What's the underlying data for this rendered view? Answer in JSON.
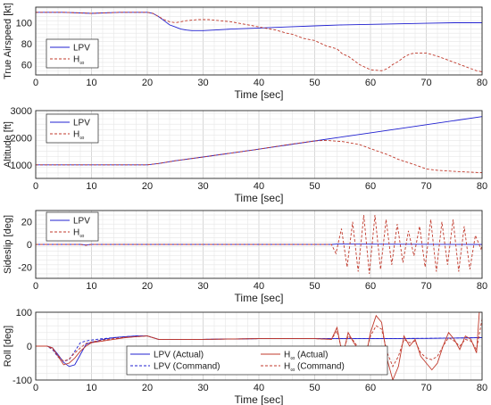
{
  "colors": {
    "lpv": "#2020d0",
    "hinf": "#c0392b",
    "axis": "#262626"
  },
  "chart_data": [
    {
      "type": "line",
      "ylabel": "True Airspeed [kt]",
      "xlabel": "Time [sec]",
      "xlim": [
        0,
        80
      ],
      "ylim": [
        50,
        115
      ],
      "xticks": [
        "0",
        "10",
        "20",
        "30",
        "40",
        "50",
        "60",
        "70",
        "80"
      ],
      "yticks": [
        "60",
        "80",
        "100"
      ],
      "grid": true,
      "legend_position": "left",
      "legend": [
        {
          "label": "LPV",
          "series": "lpv"
        },
        {
          "label": "H",
          "sub": "∞",
          "series": "hinf"
        }
      ],
      "series": [
        {
          "name": "LPV",
          "style": "solid",
          "color": "lpv",
          "x": [
            0,
            5,
            10,
            15,
            20,
            21,
            22,
            23,
            24,
            25,
            26,
            27,
            28,
            30,
            32,
            35,
            40,
            45,
            50,
            55,
            60,
            65,
            70,
            75,
            80
          ],
          "y": [
            110,
            110,
            109,
            110,
            110,
            109,
            106,
            102,
            98,
            96,
            94,
            93,
            92.5,
            92.5,
            93,
            94,
            95,
            96,
            97,
            98,
            98.5,
            99,
            99.5,
            100,
            100
          ]
        },
        {
          "name": "H∞",
          "style": "dashed",
          "color": "hinf",
          "x": [
            0,
            5,
            10,
            15,
            20,
            21,
            22,
            23,
            24,
            25,
            27,
            29,
            31,
            33,
            35,
            37,
            39,
            41,
            43,
            45,
            46,
            47,
            48,
            50,
            52,
            54,
            55,
            56,
            57,
            58,
            60,
            62,
            63,
            64,
            65,
            66,
            67,
            68,
            70,
            72,
            74,
            76,
            77,
            78,
            79,
            80
          ],
          "y": [
            110,
            110,
            109,
            110,
            110,
            109,
            106,
            103,
            101,
            100,
            102,
            103,
            103,
            102,
            101,
            99,
            97,
            95,
            93,
            90,
            89,
            87,
            85,
            83,
            78,
            75,
            70,
            68,
            64,
            60,
            55,
            54,
            56,
            60,
            63,
            67,
            70,
            71,
            71,
            68,
            64,
            60,
            58,
            56,
            54,
            53
          ]
        }
      ]
    },
    {
      "type": "line",
      "ylabel": "Altitude [ft]",
      "xlabel": "Time [sec]",
      "xlim": [
        0,
        80
      ],
      "ylim": [
        500,
        3000
      ],
      "xticks": [
        "0",
        "10",
        "20",
        "30",
        "40",
        "50",
        "60",
        "70",
        "80"
      ],
      "yticks": [
        "1000",
        "2000",
        "3000"
      ],
      "grid": true,
      "legend_position": "left",
      "legend": [
        {
          "label": "LPV",
          "series": "lpv"
        },
        {
          "label": "H",
          "sub": "∞",
          "series": "hinf"
        }
      ],
      "series": [
        {
          "name": "LPV",
          "style": "solid",
          "color": "lpv",
          "x": [
            0,
            5,
            10,
            15,
            20,
            22,
            25,
            30,
            40,
            50,
            60,
            70,
            80
          ],
          "y": [
            1000,
            1000,
            1000,
            1000,
            1000,
            1050,
            1150,
            1290,
            1580,
            1880,
            2180,
            2480,
            2780
          ]
        },
        {
          "name": "H∞",
          "style": "dashed",
          "color": "hinf",
          "x": [
            0,
            5,
            10,
            15,
            20,
            22,
            25,
            30,
            40,
            45,
            50,
            52,
            55,
            58,
            60,
            63,
            65,
            68,
            70,
            72,
            75,
            78,
            80
          ],
          "y": [
            1000,
            1000,
            1000,
            1000,
            1000,
            1050,
            1150,
            1290,
            1580,
            1740,
            1880,
            1900,
            1860,
            1750,
            1600,
            1380,
            1200,
            1000,
            850,
            800,
            760,
            730,
            710
          ]
        }
      ]
    },
    {
      "type": "line",
      "ylabel": "Sideslip [deg]",
      "xlabel": "Time [sec]",
      "xlim": [
        0,
        80
      ],
      "ylim": [
        -30,
        30
      ],
      "xticks": [
        "0",
        "10",
        "20",
        "30",
        "40",
        "50",
        "60",
        "70",
        "80"
      ],
      "yticks": [
        "-20",
        "0",
        "20"
      ],
      "grid": true,
      "legend_position": "left",
      "legend": [
        {
          "label": "LPV",
          "series": "lpv"
        },
        {
          "label": "H",
          "sub": "∞",
          "series": "hinf"
        }
      ],
      "series": [
        {
          "name": "LPV",
          "style": "solid",
          "color": "lpv",
          "x": [
            0,
            5,
            8,
            9,
            10,
            20,
            40,
            53,
            54,
            80
          ],
          "y": [
            0,
            0,
            0,
            -0.5,
            0,
            0,
            0,
            0,
            0.3,
            0
          ]
        },
        {
          "name": "H∞",
          "style": "dashed",
          "color": "hinf",
          "x": [
            0,
            5,
            8,
            9,
            10,
            20,
            40,
            52,
            53,
            53.8,
            54.8,
            55.8,
            56.8,
            57.8,
            58.8,
            59.8,
            60.8,
            61.8,
            62.8,
            63.8,
            64.8,
            65.8,
            66.8,
            67.8,
            68.8,
            69.8,
            70.8,
            71.8,
            72.8,
            73.8,
            74.8,
            75.8,
            76.8,
            77.8,
            78.8,
            79.8,
            80
          ],
          "y": [
            0,
            0,
            0,
            -0.8,
            0,
            0,
            0,
            0,
            0,
            -8,
            14,
            -20,
            20,
            -24,
            26,
            -26,
            26,
            -22,
            22,
            -18,
            18,
            -16,
            12,
            -10,
            16,
            -20,
            22,
            -24,
            20,
            -18,
            22,
            -24,
            16,
            -22,
            8,
            -4,
            0
          ]
        }
      ]
    },
    {
      "type": "line",
      "ylabel": "Roll [deg]",
      "xlabel": "Time [sec]",
      "xlim": [
        0,
        80
      ],
      "ylim": [
        -100,
        100
      ],
      "xticks": [
        "0",
        "10",
        "20",
        "30",
        "40",
        "50",
        "60",
        "70",
        "80"
      ],
      "yticks": [
        "-100",
        "0",
        "100"
      ],
      "grid": true,
      "legend_position": "bottom-center",
      "legend_columns": 2,
      "legend": [
        {
          "label": "LPV (Actual)",
          "series": "lpv_act"
        },
        {
          "label": "H",
          "sub": "∞",
          "suffix": " (Actual)",
          "series": "hinf_act"
        },
        {
          "label": "LPV (Command)",
          "series": "lpv_cmd"
        },
        {
          "label": "H",
          "sub": "∞",
          "suffix": " (Command)",
          "series": "hinf_cmd"
        }
      ],
      "series": [
        {
          "name": "LPV (Actual)",
          "id": "lpv_act",
          "style": "solid",
          "color": "lpv",
          "x": [
            0,
            2,
            3,
            4,
            5,
            6,
            7,
            8,
            9,
            10,
            11,
            12,
            14,
            16,
            18,
            20,
            21,
            22,
            25,
            30,
            40,
            50,
            60,
            70,
            80
          ],
          "y": [
            0,
            0,
            -5,
            -25,
            -48,
            -60,
            -55,
            -25,
            5,
            12,
            15,
            20,
            25,
            28,
            30,
            30,
            25,
            20,
            20,
            20,
            22,
            22,
            22,
            23,
            25
          ]
        },
        {
          "name": "LPV (Command)",
          "id": "lpv_cmd",
          "style": "dashed",
          "color": "lpv",
          "x": [
            0,
            2,
            3,
            4,
            5,
            6,
            7,
            8,
            9,
            10,
            12,
            14,
            16,
            18,
            20,
            21,
            22,
            25,
            30,
            40,
            50,
            60,
            70,
            80
          ],
          "y": [
            0,
            0,
            -10,
            -32,
            -45,
            -40,
            -15,
            10,
            15,
            18,
            22,
            25,
            28,
            30,
            30,
            25,
            20,
            20,
            20,
            22,
            22,
            22,
            23,
            25
          ]
        },
        {
          "name": "H∞ (Actual)",
          "id": "hinf_act",
          "style": "solid",
          "color": "hinf",
          "x": [
            0,
            2,
            3,
            4,
            5,
            6,
            7,
            8,
            9,
            10,
            12,
            14,
            16,
            18,
            20,
            22,
            25,
            30,
            40,
            50,
            53,
            54,
            55,
            56,
            57,
            58,
            59,
            60,
            61,
            62,
            63,
            64,
            65,
            66,
            67,
            68,
            69,
            70,
            71,
            72,
            73,
            74,
            75,
            76,
            77,
            78,
            79,
            79.5,
            80
          ],
          "y": [
            0,
            0,
            -5,
            -30,
            -55,
            -50,
            -35,
            -15,
            0,
            10,
            15,
            20,
            25,
            28,
            30,
            20,
            20,
            20,
            22,
            22,
            20,
            55,
            -30,
            40,
            10,
            -15,
            -45,
            40,
            90,
            70,
            -40,
            -100,
            -60,
            30,
            0,
            20,
            -30,
            -50,
            -70,
            -50,
            0,
            40,
            20,
            -10,
            30,
            20,
            -20,
            100,
            100
          ]
        },
        {
          "name": "H∞ (Command)",
          "id": "hinf_cmd",
          "style": "dashed",
          "color": "hinf",
          "x": [
            0,
            2,
            3,
            4,
            5,
            6,
            7,
            8,
            9,
            10,
            12,
            14,
            16,
            18,
            20,
            22,
            25,
            30,
            40,
            50,
            53,
            54,
            55,
            56,
            57,
            58,
            59,
            60,
            61,
            62,
            63,
            64,
            65,
            66,
            67,
            68,
            69,
            70,
            71,
            72,
            73,
            74,
            75,
            76,
            77,
            78,
            79,
            80
          ],
          "y": [
            0,
            0,
            -8,
            -28,
            -45,
            -38,
            -20,
            -5,
            8,
            12,
            18,
            22,
            26,
            28,
            30,
            20,
            20,
            20,
            22,
            22,
            20,
            45,
            -20,
            30,
            15,
            -10,
            -30,
            30,
            60,
            50,
            -20,
            -60,
            -30,
            20,
            10,
            15,
            -20,
            -35,
            -40,
            -30,
            0,
            25,
            15,
            0,
            20,
            15,
            -10,
            80
          ]
        }
      ]
    }
  ]
}
